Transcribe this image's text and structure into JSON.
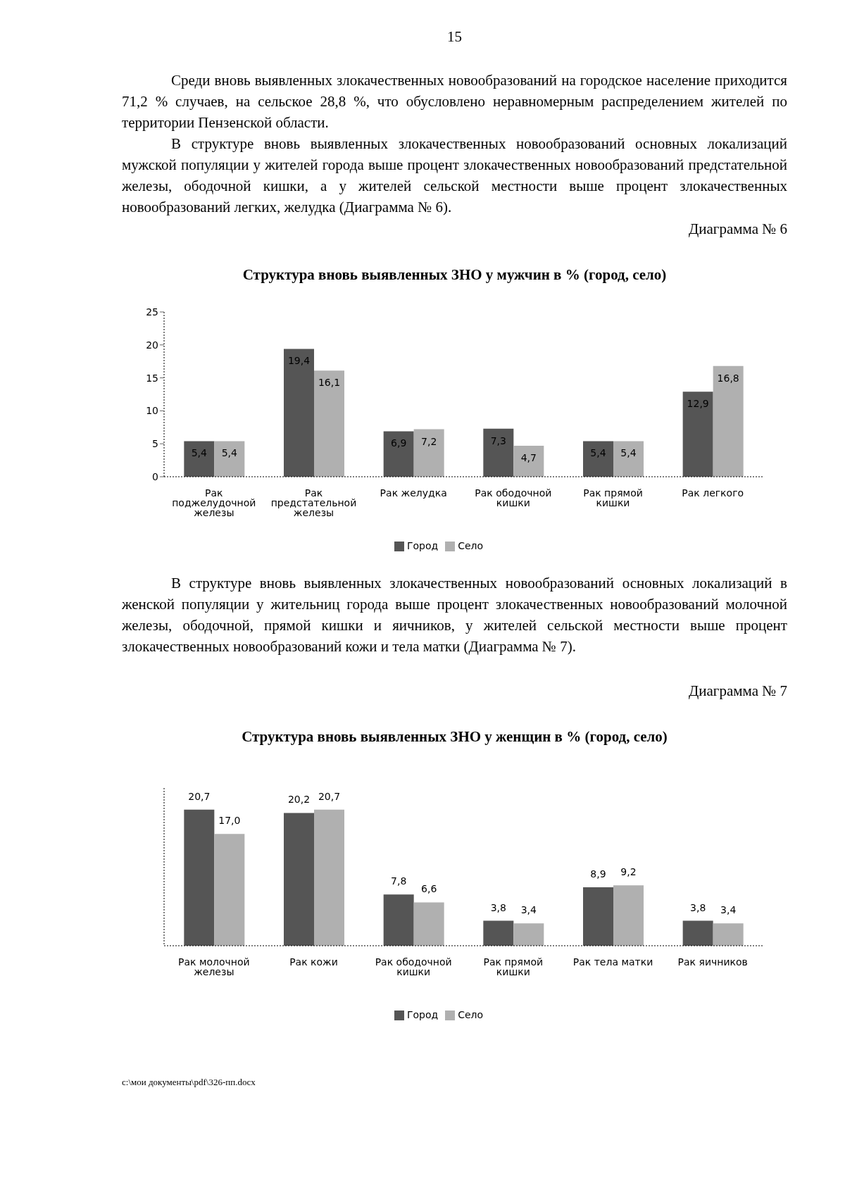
{
  "chart_data": [
    {
      "type": "bar",
      "title": "Структура вновь выявленных ЗНО у мужчин в % (город, село)",
      "annotations": [
        "15",
        "Среди вновь выявленных злокачественных новообразований на городское население приходится 71,2 % случаев, на сельское 28,8 %, что обусловлено неравномерным распределением жителей по территории Пензенской области.",
        "В структуре вновь выявленных злокачественных новообразований основных локализаций мужской популяции у жителей города выше процент злокачественных новообразований предстательной железы, ободочной кишки, а у жителей сельской местности выше процент злокачественных новообразований легких, желудка (Диаграмма № 6).",
        "Диаграмма № 6"
      ],
      "categories": [
        "Рак поджелудочной железы",
        "Рак предстательной железы",
        "Рак желудка",
        "Рак ободочной кишки",
        "Рак прямой кишки",
        "Рак легкого"
      ],
      "series": [
        {
          "name": "Город",
          "color": "#555555",
          "values": [
            5.4,
            19.4,
            6.9,
            7.3,
            5.4,
            12.9
          ],
          "value_labels": [
            "5,4",
            "19,4",
            "6,9",
            "7,3",
            "5,4",
            "12,9"
          ]
        },
        {
          "name": "Село",
          "color": "#b0b0b0",
          "values": [
            5.4,
            16.1,
            7.2,
            4.7,
            5.4,
            16.8
          ],
          "value_labels": [
            "5,4",
            "16,1",
            "7,2",
            "4,7",
            "5,4",
            "16,8"
          ]
        }
      ],
      "ylim": [
        0,
        25
      ],
      "yticks": [
        0,
        5,
        10,
        15,
        20,
        25
      ],
      "legend": "bottom"
    },
    {
      "type": "bar",
      "title": "Структура вновь выявленных ЗНО у женщин в % (город, село)",
      "annotations": [
        "В структуре вновь выявленных злокачественных новообразований основных локализаций в женской популяции у жительниц города выше процент злокачественных новообразований молочной железы, ободочной, прямой кишки и яичников, у жителей сельской местности выше процент злокачественных новообразований кожи и тела матки (Диаграмма № 7).",
        "Диаграмма № 7",
        "c:\\мои документы\\pdf\\326-пп.docx"
      ],
      "categories": [
        "Рак молочной железы",
        "Рак кожи",
        "Рак ободочной кишки",
        "Рак прямой кишки",
        "Рак тела матки",
        "Рак яичников"
      ],
      "series": [
        {
          "name": "Город",
          "color": "#555555",
          "values": [
            20.7,
            20.2,
            7.8,
            3.8,
            8.9,
            3.8
          ],
          "value_labels": [
            "20,7",
            "20,2",
            "7,8",
            "3,8",
            "8,9",
            "3,8"
          ]
        },
        {
          "name": "Село",
          "color": "#b0b0b0",
          "values": [
            17.0,
            20.7,
            6.6,
            3.4,
            9.2,
            3.4
          ],
          "value_labels": [
            "17,0",
            "20,7",
            "6,6",
            "3,4",
            "9,2",
            "3,4"
          ]
        }
      ],
      "tick_labels": "x",
      "legend": "bottom"
    }
  ]
}
